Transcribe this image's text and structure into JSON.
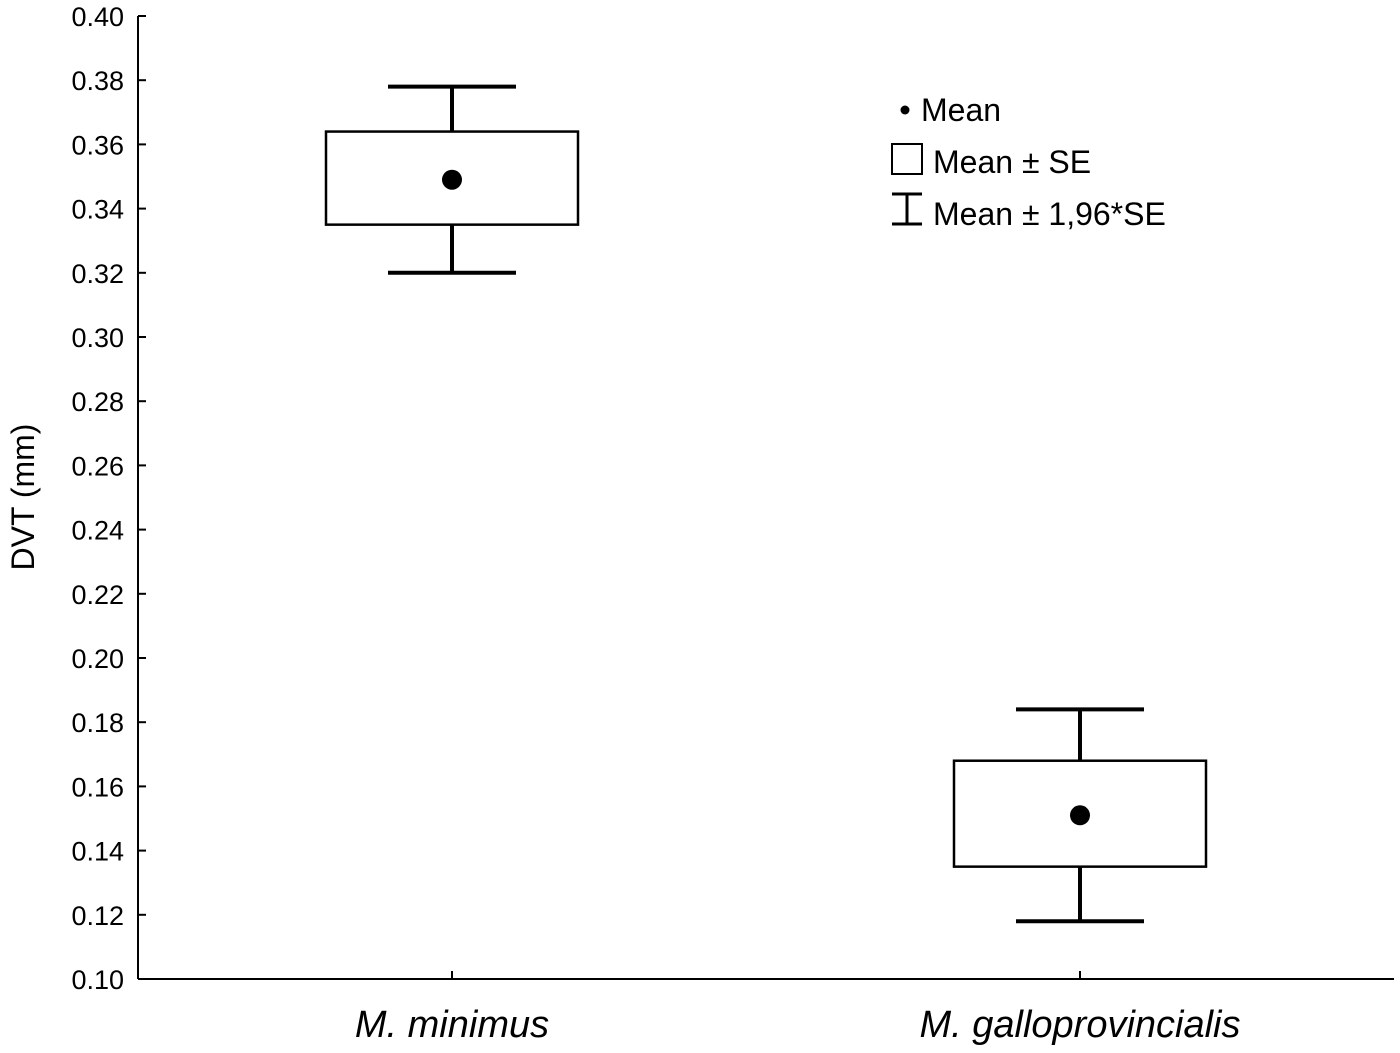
{
  "chart_data": {
    "type": "box",
    "ylabel": "DVT (mm)",
    "xlabel": "",
    "ylim": [
      0.1,
      0.4
    ],
    "yticks": [
      "0.10",
      "0.12",
      "0.14",
      "0.16",
      "0.18",
      "0.20",
      "0.22",
      "0.24",
      "0.26",
      "0.28",
      "0.30",
      "0.32",
      "0.34",
      "0.36",
      "0.38",
      "0.40"
    ],
    "categories": [
      "M. minimus",
      "M. galloprovincialis"
    ],
    "series": [
      {
        "category": "M. minimus",
        "mean": 0.349,
        "se_low": 0.335,
        "se_high": 0.364,
        "ci_low": 0.32,
        "ci_high": 0.378
      },
      {
        "category": "M. galloprovincialis",
        "mean": 0.151,
        "se_low": 0.135,
        "se_high": 0.168,
        "ci_low": 0.118,
        "ci_high": 0.184
      }
    ],
    "legend": {
      "placement": "top-right",
      "items": [
        {
          "symbol": "dot",
          "label": "Mean"
        },
        {
          "symbol": "box",
          "label": "Mean ± SE"
        },
        {
          "symbol": "whisker",
          "label": "Mean ± 1,96*SE"
        }
      ]
    },
    "grid": false
  }
}
